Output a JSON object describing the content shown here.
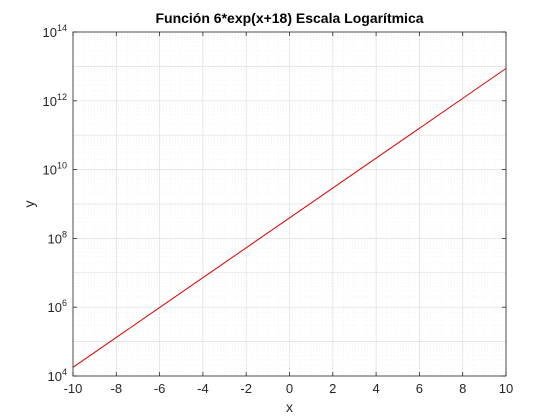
{
  "chart_data": {
    "type": "line",
    "title": "Función 6*exp(x+18) Escala Logarítmica",
    "xlabel": "x",
    "ylabel": "y",
    "xlim": [
      -10,
      10
    ],
    "ylim": [
      10000,
      100000000000000
    ],
    "yscale": "log",
    "grid": true,
    "minor_grid": true,
    "x_ticks": [
      -10,
      -8,
      -6,
      -4,
      -2,
      0,
      2,
      4,
      6,
      8,
      10
    ],
    "x_tick_labels": [
      "-10",
      "-8",
      "-6",
      "-4",
      "-2",
      "0",
      "2",
      "4",
      "6",
      "8",
      "10"
    ],
    "y_ticks": [
      4,
      6,
      8,
      10,
      12,
      14
    ],
    "y_tick_base": "10",
    "y_tick_exponents": [
      "4",
      "6",
      "8",
      "10",
      "12",
      "14"
    ],
    "series": [
      {
        "function": "6*exp(x+18)",
        "color": "#e00000",
        "x": [
          -10,
          -8,
          -6,
          -4,
          -2,
          0,
          2,
          4,
          6,
          8,
          10
        ],
        "y": [
          17887,
          132170,
          976630,
          7216300,
          53322000,
          393990000,
          2911300000,
          21512000000,
          158950000000,
          1174500000000,
          8678000000000
        ]
      }
    ]
  },
  "colors": {
    "axis": "#262626",
    "grid_major": "#dfdfdf",
    "grid_minor": "#ececec",
    "line": "#e00000"
  }
}
